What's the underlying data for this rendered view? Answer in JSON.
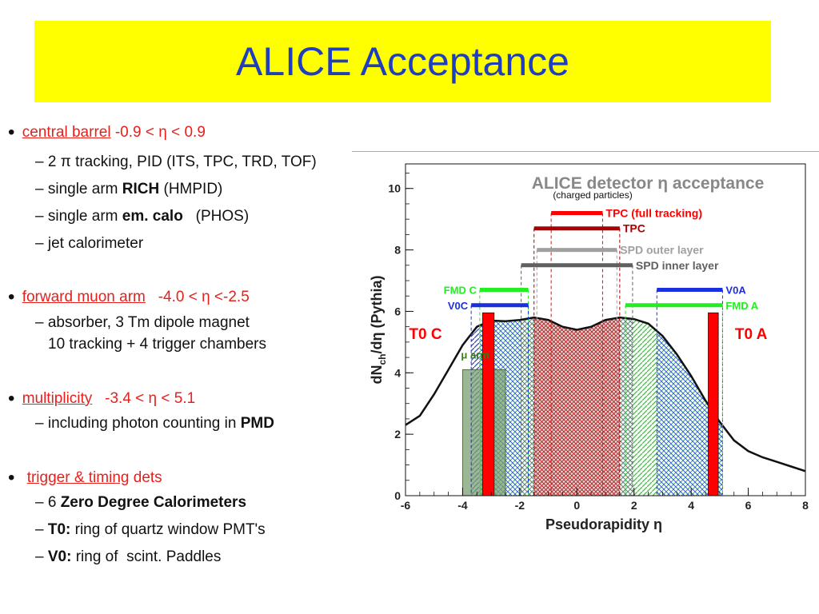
{
  "slide": {
    "title": "ALICE Acceptance"
  },
  "bullets": {
    "b1_term": "central barrel",
    "b1_range": "-0.9 < η < 0.9",
    "b1_s1a": "– 2 π tracking, PID (ITS, TPC, TRD, TOF)",
    "b1_s2a": "– single arm ",
    "b1_s2b": "RICH",
    "b1_s2c": " (HMPID)",
    "b1_s3a": "– single arm ",
    "b1_s3b": "em. calo",
    "b1_s3c": "   (PHOS)",
    "b1_s4": "– jet calorimeter",
    "b2_term": "forward muon arm",
    "b2_range": "  -4.0 < η <-2.5",
    "b2_s1": "– absorber, 3 Tm dipole magnet",
    "b2_s2": "10 tracking + 4 trigger chambers",
    "b3_term": "multiplicity",
    "b3_range": "  -3.4 < η < 5.1",
    "b3_s1a": "– including photon counting in ",
    "b3_s1b": "PMD",
    "b4_term": "trigger & timing",
    "b4_rest": " dets",
    "b4_s1a": "– 6 ",
    "b4_s1b": "Zero Degree Calorimeters",
    "b4_s2a": "– ",
    "b4_s2b": "T0:",
    "b4_s2c": " ring of quartz window PMT's",
    "b4_s3a": "– ",
    "b4_s3b": "V0:",
    "b4_s3c": " ring of  scint. Paddles"
  },
  "chart_data": {
    "type": "area",
    "title": "ALICE detector η acceptance",
    "subtitle": "(charged particles)",
    "xlabel": "Pseudorapidity η",
    "ylabel": "dN",
    "ylabel_sub": "ch",
    "ylabel_rest": "/dη (Pythia)",
    "xlim": [
      -6,
      8
    ],
    "ylim": [
      0,
      10.8
    ],
    "xticks": [
      -6,
      -4,
      -2,
      0,
      2,
      4,
      6,
      8
    ],
    "yticks": [
      0,
      2,
      4,
      6,
      8,
      10
    ],
    "grid": false,
    "curve": {
      "x": [
        -6.0,
        -5.5,
        -5.0,
        -4.5,
        -4.0,
        -3.5,
        -3.0,
        -2.5,
        -2.0,
        -1.5,
        -1.0,
        -0.5,
        0.0,
        0.5,
        1.0,
        1.5,
        2.0,
        2.5,
        3.0,
        3.5,
        4.0,
        4.5,
        5.0,
        5.5,
        6.0,
        6.5,
        7.0,
        7.5,
        8.0
      ],
      "y": [
        2.3,
        2.6,
        3.3,
        4.1,
        4.9,
        5.5,
        5.7,
        5.68,
        5.72,
        5.8,
        5.72,
        5.5,
        5.4,
        5.5,
        5.72,
        5.8,
        5.75,
        5.6,
        5.2,
        4.6,
        3.9,
        3.1,
        2.4,
        1.8,
        1.45,
        1.25,
        1.1,
        0.95,
        0.8
      ]
    },
    "detectors": [
      {
        "name": "TPC (full tracking)",
        "xmin": -0.9,
        "xmax": 0.9,
        "y": 9.2,
        "color": "#ff0000",
        "label_side": "right"
      },
      {
        "name": "TPC",
        "xmin": -1.5,
        "xmax": 1.5,
        "y": 8.7,
        "color": "#aa0000",
        "label_side": "right"
      },
      {
        "name": "SPD outer layer",
        "xmin": -1.4,
        "xmax": 1.4,
        "y": 8.0,
        "color": "#a0a0a0",
        "label_side": "right"
      },
      {
        "name": "SPD inner layer",
        "xmin": -1.95,
        "xmax": 1.95,
        "y": 7.5,
        "color": "#606060",
        "label_side": "right"
      },
      {
        "name": "FMD C",
        "xmin": -3.4,
        "xmax": -1.7,
        "y": 6.7,
        "color": "#22ee22",
        "label_side": "left"
      },
      {
        "name": "V0C",
        "xmin": -3.7,
        "xmax": -1.7,
        "y": 6.2,
        "color": "#1a2fe0",
        "label_side": "left"
      },
      {
        "name": "V0A",
        "xmin": 2.8,
        "xmax": 5.1,
        "y": 6.7,
        "color": "#1a2fe0",
        "label_side": "right"
      },
      {
        "name": "FMD A",
        "xmin": 1.7,
        "xmax": 5.1,
        "y": 6.2,
        "color": "#22ee22",
        "label_side": "right"
      }
    ],
    "t0": [
      {
        "name": "T0 C",
        "xmin": -3.3,
        "xmax": -2.9,
        "y": 5.95
      },
      {
        "name": "T0 A",
        "xmin": 4.6,
        "xmax": 4.95,
        "y": 5.95
      }
    ],
    "muon_arm": {
      "name": "μ arm",
      "xmin": -4.0,
      "xmax": -2.5,
      "y": 4.1
    },
    "regions": [
      {
        "xmin": -3.7,
        "xmax": -3.4,
        "pattern": "blue-hatch"
      },
      {
        "xmin": -3.4,
        "xmax": -1.95,
        "pattern": "green-blue-cross"
      },
      {
        "xmin": -1.95,
        "xmax": -1.5,
        "pattern": "gray-cross"
      },
      {
        "xmin": -1.5,
        "xmax": 1.5,
        "pattern": "red-cross"
      },
      {
        "xmin": 1.5,
        "xmax": 1.95,
        "pattern": "gray-cross"
      },
      {
        "xmin": 1.95,
        "xmax": 2.8,
        "pattern": "green-hatch"
      },
      {
        "xmin": 2.8,
        "xmax": 5.1,
        "pattern": "green-blue-cross"
      }
    ],
    "colors": {
      "curve": "#111111",
      "t0": "#ff0000",
      "muon": "#7aa070",
      "muon_label": "#3a7a1a",
      "title": "#888888"
    }
  }
}
